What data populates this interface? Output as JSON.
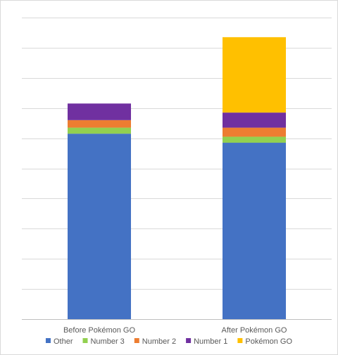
{
  "chart_data": {
    "type": "bar",
    "stacked": true,
    "categories": [
      "Before Pokémon GO",
      "After Pokémon GO"
    ],
    "series": [
      {
        "name": "Other",
        "color": "#4472C4",
        "values": [
          61.5,
          58.5
        ]
      },
      {
        "name": "Number 3",
        "color": "#92D050",
        "values": [
          2,
          2
        ]
      },
      {
        "name": "Number 2",
        "color": "#ED7D31",
        "values": [
          2.5,
          3
        ]
      },
      {
        "name": "Number 1",
        "color": "#7030A0",
        "values": [
          5.5,
          5
        ]
      },
      {
        "name": "Pokémon GO",
        "color": "#FFC000",
        "values": [
          0,
          25
        ]
      }
    ],
    "ylim": [
      0,
      100
    ],
    "y_tick_step": 10,
    "y_tick_labels_visible": false,
    "grid": true,
    "legend_position": "bottom"
  }
}
